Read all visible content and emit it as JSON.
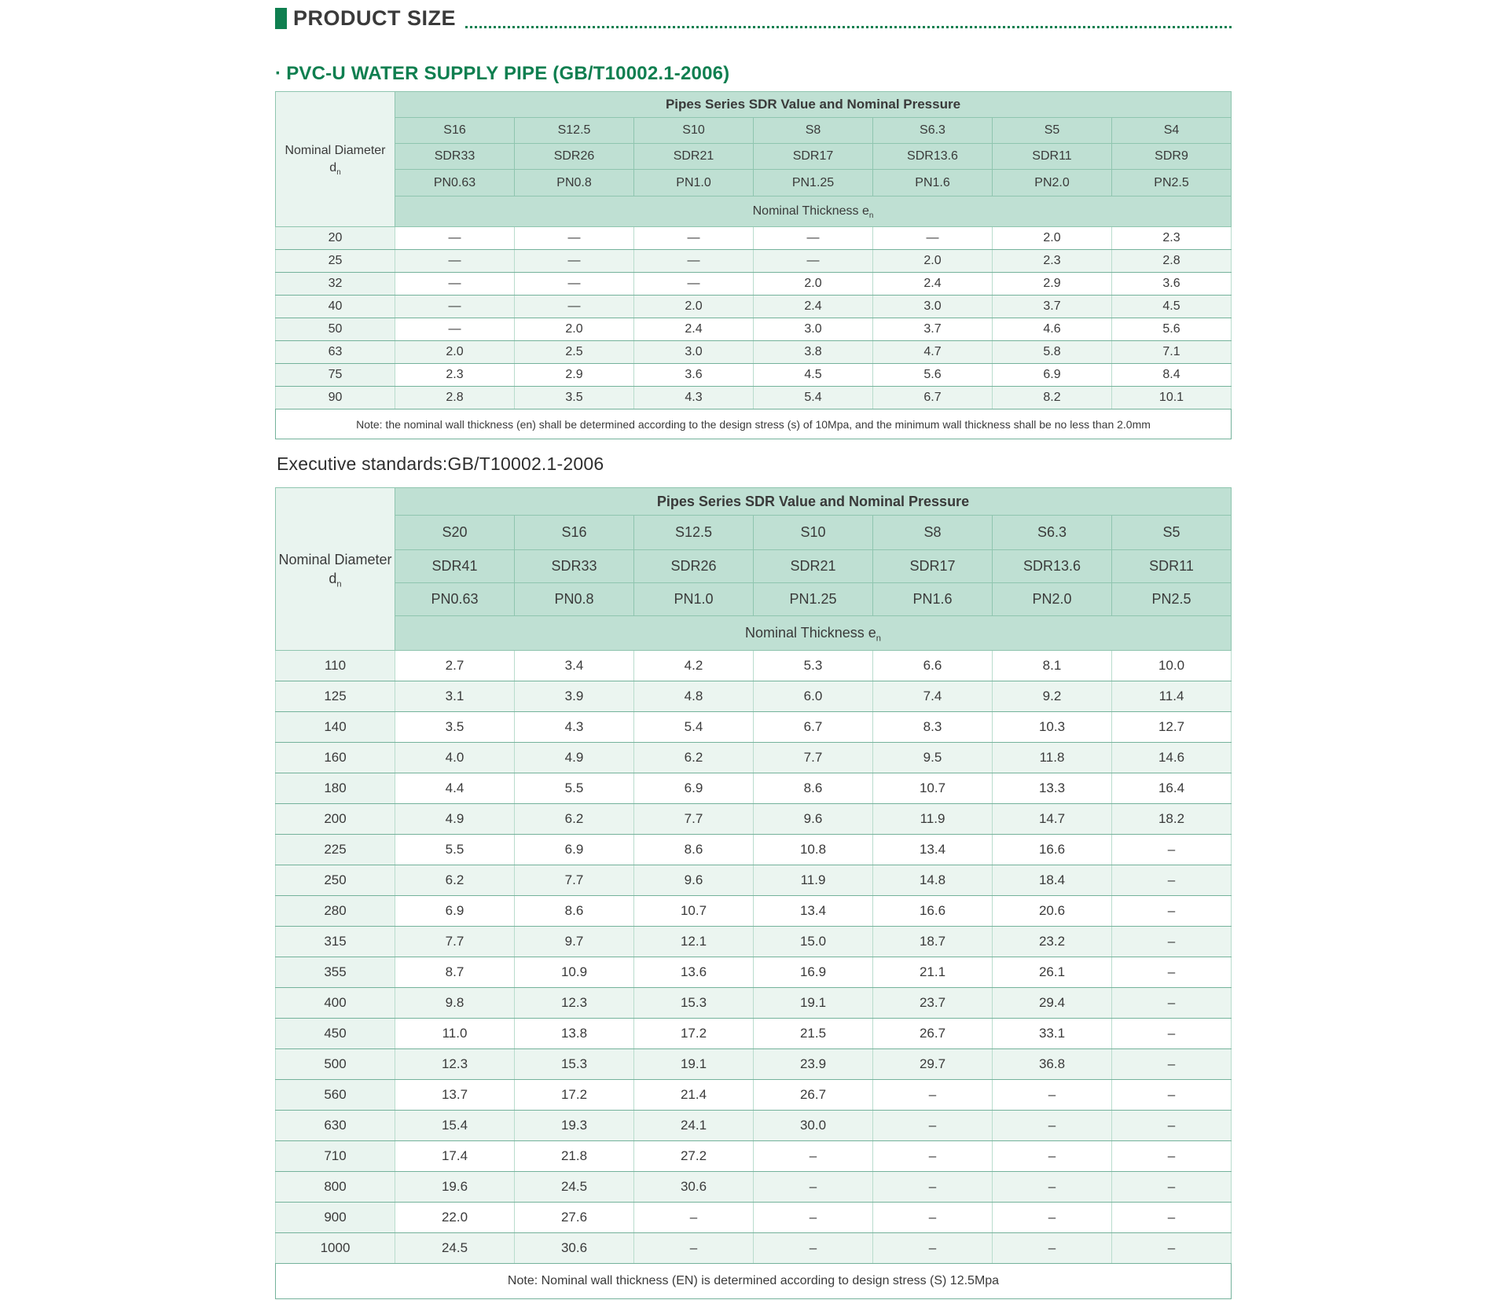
{
  "page": {
    "title": "PRODUCT SIZE",
    "subtitle_bullet": "·",
    "subtitle": "PVC-U WATER SUPPLY PIPE (GB/T10002.1-2006)",
    "executive_standard": "Executive standards:GB/T10002.1-2006"
  },
  "colors": {
    "accent_green": "#0f7f50",
    "header_bg": "#bfe0d3",
    "label_bg": "#e9f4ef",
    "row_alt_bg": "#ebf5f0",
    "border_dark": "#74b29b",
    "border_mid": "#8fc5af",
    "border_light": "#b9dccd",
    "text_dark": "#3a3a3a"
  },
  "table1": {
    "group_header": "Pipes Series SDR Value and Nominal Pressure",
    "corner": {
      "line1": "Nominal Diameter",
      "symbol": "d",
      "sub": "n"
    },
    "series_row": [
      "S16",
      "S12.5",
      "S10",
      "S8",
      "S6.3",
      "S5",
      "S4"
    ],
    "sdr_row": [
      "SDR33",
      "SDR26",
      "SDR21",
      "SDR17",
      "SDR13.6",
      "SDR11",
      "SDR9"
    ],
    "pn_row": [
      "PN0.63",
      "PN0.8",
      "PN1.0",
      "PN1.25",
      "PN1.6",
      "PN2.0",
      "PN2.5"
    ],
    "thickness": {
      "label": "Nominal Thickness e",
      "sub": "n"
    },
    "rows": [
      {
        "dn": "20",
        "values": [
          "—",
          "—",
          "—",
          "—",
          "—",
          "2.0",
          "2.3"
        ]
      },
      {
        "dn": "25",
        "values": [
          "—",
          "—",
          "—",
          "—",
          "2.0",
          "2.3",
          "2.8"
        ]
      },
      {
        "dn": "32",
        "values": [
          "—",
          "—",
          "—",
          "2.0",
          "2.4",
          "2.9",
          "3.6"
        ]
      },
      {
        "dn": "40",
        "values": [
          "—",
          "—",
          "2.0",
          "2.4",
          "3.0",
          "3.7",
          "4.5"
        ]
      },
      {
        "dn": "50",
        "values": [
          "—",
          "2.0",
          "2.4",
          "3.0",
          "3.7",
          "4.6",
          "5.6"
        ]
      },
      {
        "dn": "63",
        "values": [
          "2.0",
          "2.5",
          "3.0",
          "3.8",
          "4.7",
          "5.8",
          "7.1"
        ]
      },
      {
        "dn": "75",
        "values": [
          "2.3",
          "2.9",
          "3.6",
          "4.5",
          "5.6",
          "6.9",
          "8.4"
        ]
      },
      {
        "dn": "90",
        "values": [
          "2.8",
          "3.5",
          "4.3",
          "5.4",
          "6.7",
          "8.2",
          "10.1"
        ]
      }
    ],
    "note": "Note: the nominal wall thickness (en) shall be determined according to the design stress (s) of 10Mpa, and the minimum wall thickness shall be no less than 2.0mm"
  },
  "table2": {
    "group_header": "Pipes Series SDR Value and Nominal Pressure",
    "corner": {
      "line1": "Nominal Diameter",
      "symbol": "d",
      "sub": "n"
    },
    "series_row": [
      "S20",
      "S16",
      "S12.5",
      "S10",
      "S8",
      "S6.3",
      "S5"
    ],
    "sdr_row": [
      "SDR41",
      "SDR33",
      "SDR26",
      "SDR21",
      "SDR17",
      "SDR13.6",
      "SDR11"
    ],
    "pn_row": [
      "PN0.63",
      "PN0.8",
      "PN1.0",
      "PN1.25",
      "PN1.6",
      "PN2.0",
      "PN2.5"
    ],
    "thickness": {
      "label": "Nominal Thickness e",
      "sub": "n"
    },
    "rows": [
      {
        "dn": "110",
        "values": [
          "2.7",
          "3.4",
          "4.2",
          "5.3",
          "6.6",
          "8.1",
          "10.0"
        ]
      },
      {
        "dn": "125",
        "values": [
          "3.1",
          "3.9",
          "4.8",
          "6.0",
          "7.4",
          "9.2",
          "11.4"
        ]
      },
      {
        "dn": "140",
        "values": [
          "3.5",
          "4.3",
          "5.4",
          "6.7",
          "8.3",
          "10.3",
          "12.7"
        ]
      },
      {
        "dn": "160",
        "values": [
          "4.0",
          "4.9",
          "6.2",
          "7.7",
          "9.5",
          "11.8",
          "14.6"
        ]
      },
      {
        "dn": "180",
        "values": [
          "4.4",
          "5.5",
          "6.9",
          "8.6",
          "10.7",
          "13.3",
          "16.4"
        ]
      },
      {
        "dn": "200",
        "values": [
          "4.9",
          "6.2",
          "7.7",
          "9.6",
          "11.9",
          "14.7",
          "18.2"
        ]
      },
      {
        "dn": "225",
        "values": [
          "5.5",
          "6.9",
          "8.6",
          "10.8",
          "13.4",
          "16.6",
          "–"
        ]
      },
      {
        "dn": "250",
        "values": [
          "6.2",
          "7.7",
          "9.6",
          "11.9",
          "14.8",
          "18.4",
          "–"
        ]
      },
      {
        "dn": "280",
        "values": [
          "6.9",
          "8.6",
          "10.7",
          "13.4",
          "16.6",
          "20.6",
          "–"
        ]
      },
      {
        "dn": "315",
        "values": [
          "7.7",
          "9.7",
          "12.1",
          "15.0",
          "18.7",
          "23.2",
          "–"
        ]
      },
      {
        "dn": "355",
        "values": [
          "8.7",
          "10.9",
          "13.6",
          "16.9",
          "21.1",
          "26.1",
          "–"
        ]
      },
      {
        "dn": "400",
        "values": [
          "9.8",
          "12.3",
          "15.3",
          "19.1",
          "23.7",
          "29.4",
          "–"
        ]
      },
      {
        "dn": "450",
        "values": [
          "11.0",
          "13.8",
          "17.2",
          "21.5",
          "26.7",
          "33.1",
          "–"
        ]
      },
      {
        "dn": "500",
        "values": [
          "12.3",
          "15.3",
          "19.1",
          "23.9",
          "29.7",
          "36.8",
          "–"
        ]
      },
      {
        "dn": "560",
        "values": [
          "13.7",
          "17.2",
          "21.4",
          "26.7",
          "–",
          "–",
          "–"
        ]
      },
      {
        "dn": "630",
        "values": [
          "15.4",
          "19.3",
          "24.1",
          "30.0",
          "–",
          "–",
          "–"
        ]
      },
      {
        "dn": "710",
        "values": [
          "17.4",
          "21.8",
          "27.2",
          "–",
          "–",
          "–",
          "–"
        ]
      },
      {
        "dn": "800",
        "values": [
          "19.6",
          "24.5",
          "30.6",
          "–",
          "–",
          "–",
          "–"
        ]
      },
      {
        "dn": "900",
        "values": [
          "22.0",
          "27.6",
          "–",
          "–",
          "–",
          "–",
          "–"
        ]
      },
      {
        "dn": "1000",
        "values": [
          "24.5",
          "30.6",
          "–",
          "–",
          "–",
          "–",
          "–"
        ]
      }
    ],
    "note": "Note: Nominal wall thickness (EN) is determined according to design stress (S) 12.5Mpa"
  }
}
